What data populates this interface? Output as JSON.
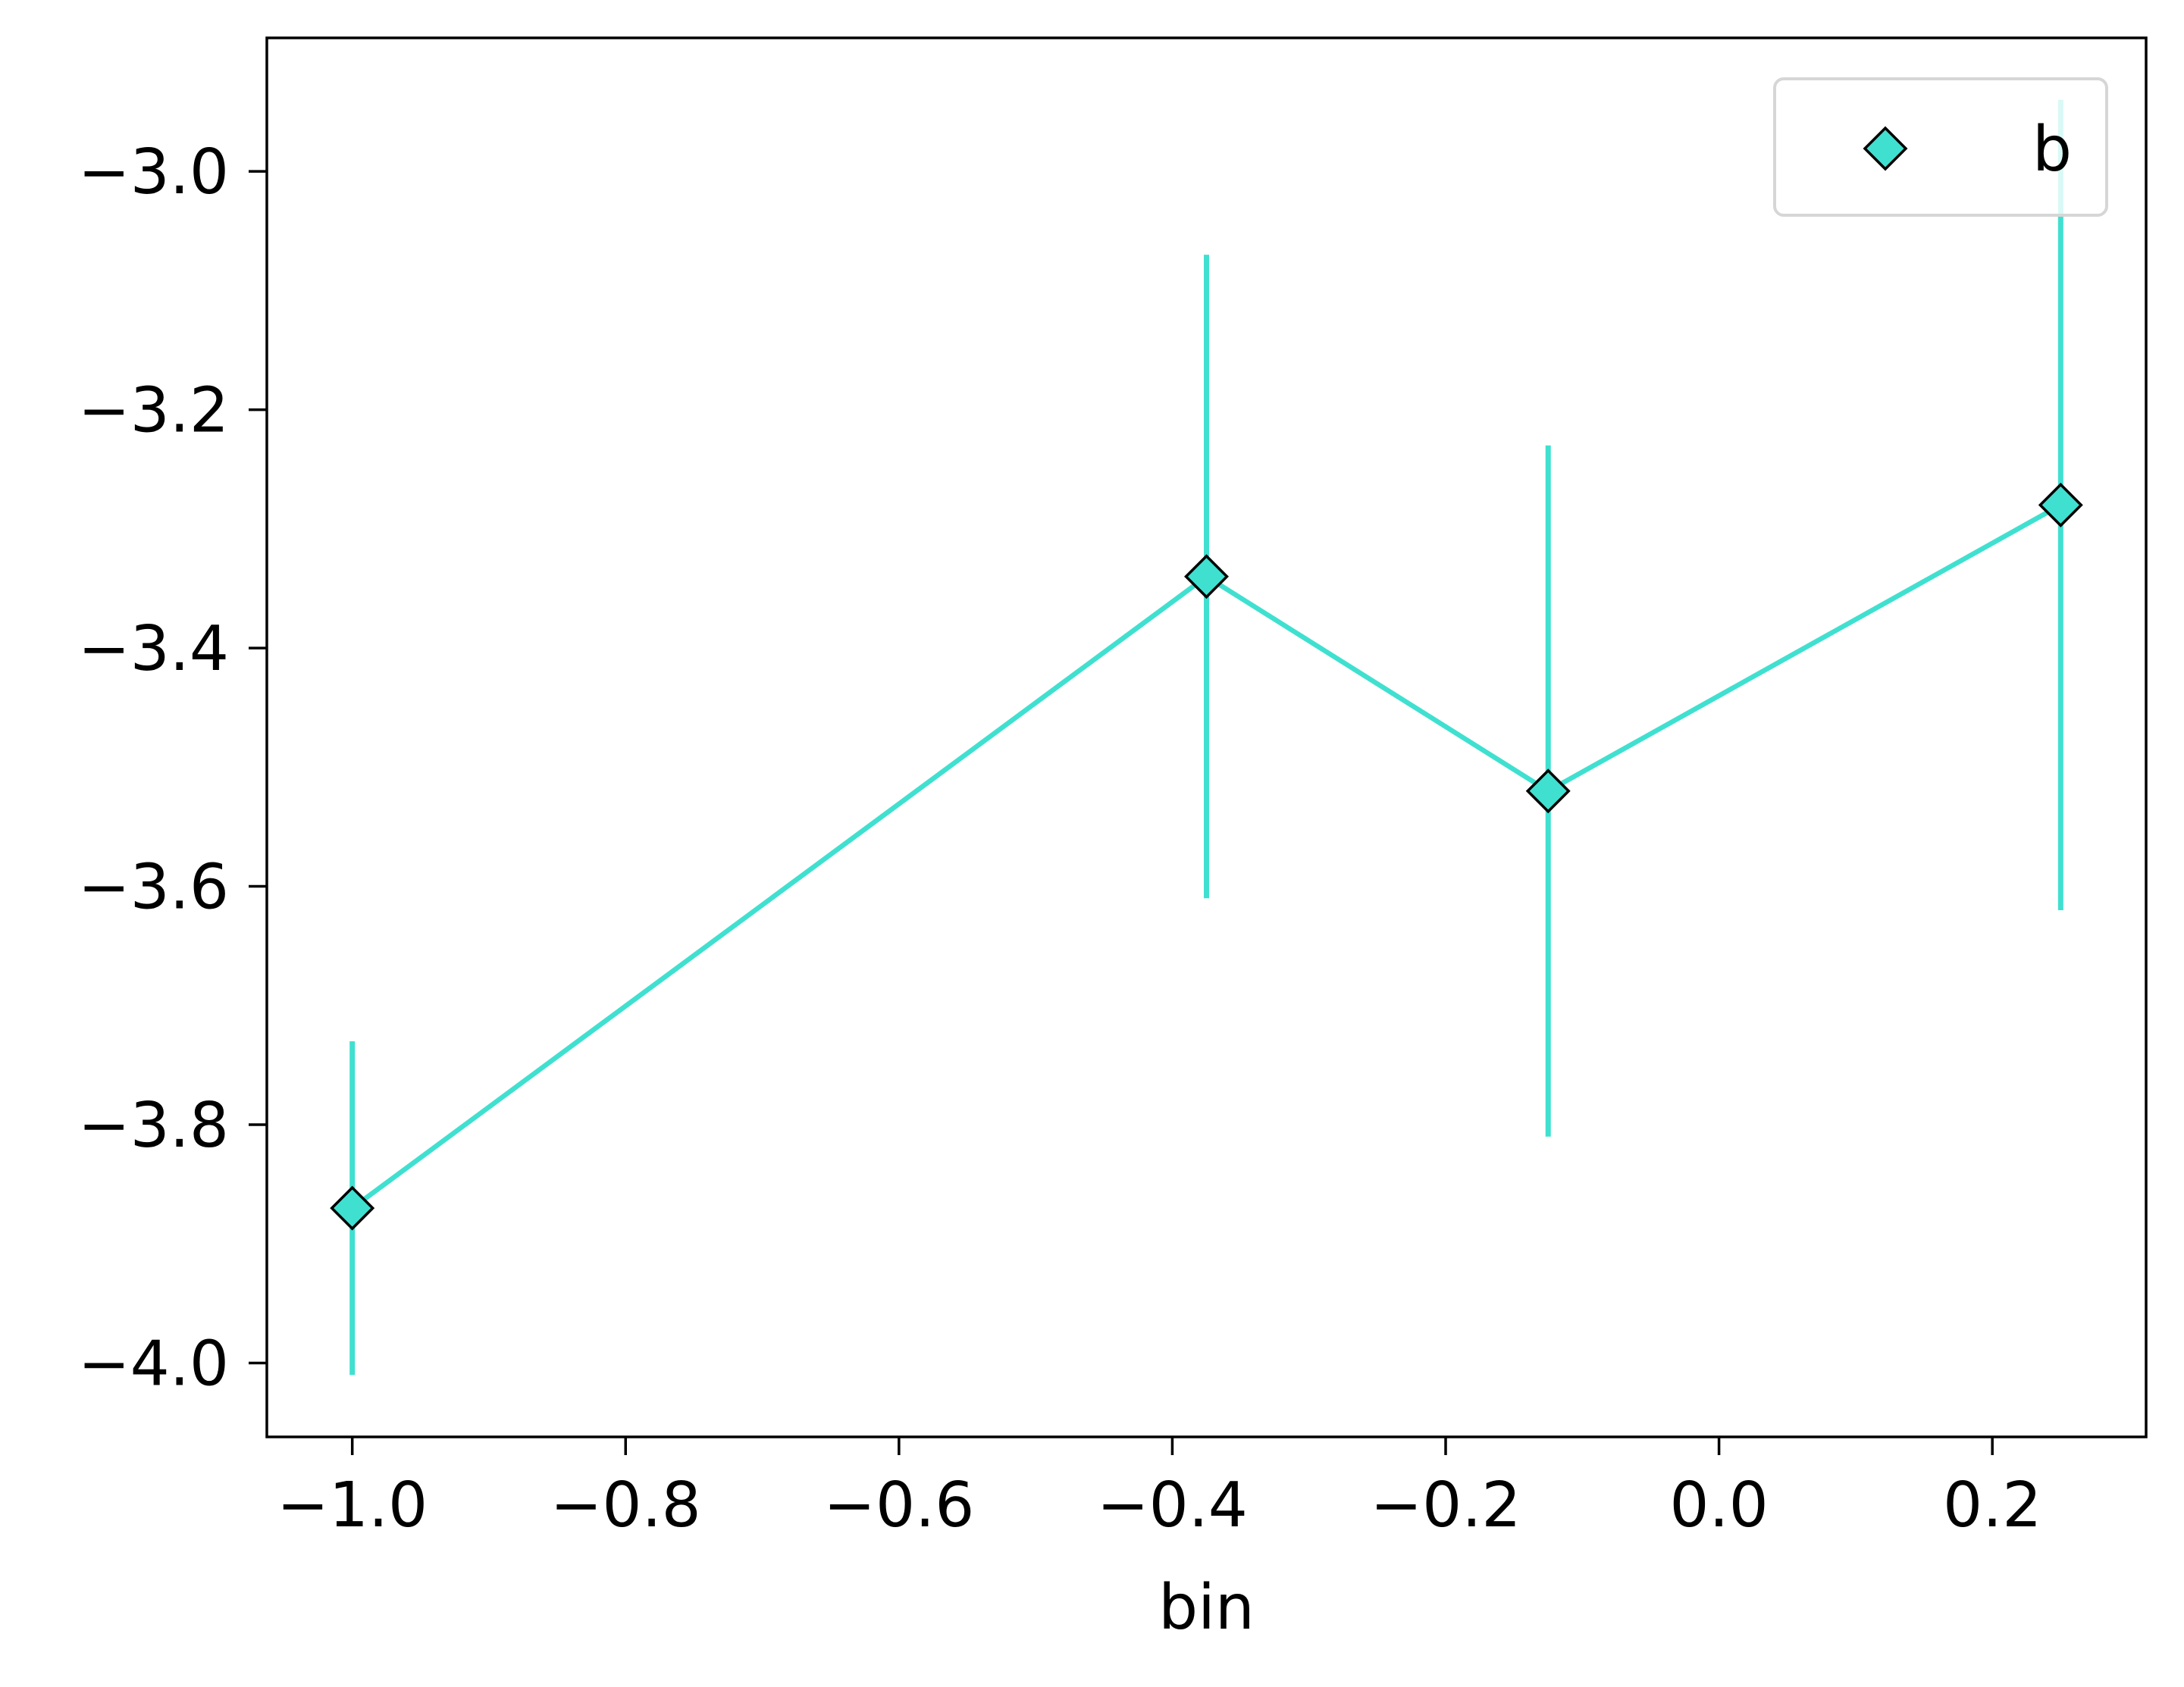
{
  "chart_data": {
    "type": "line",
    "title": "",
    "xlabel": "bin",
    "ylabel": "",
    "xlim": [
      -1.0625,
      0.3125
    ],
    "ylim": [
      -4.062,
      -2.888
    ],
    "x_ticks": [
      -1.0,
      -0.8,
      -0.6,
      -0.4,
      -0.2,
      0.0,
      0.2
    ],
    "x_tick_labels": [
      "−1.0",
      "−0.8",
      "−0.6",
      "−0.4",
      "−0.2",
      "0.0",
      "0.2"
    ],
    "y_ticks": [
      -3.0,
      -3.2,
      -3.4,
      -3.6,
      -3.8,
      -4.0
    ],
    "y_tick_labels": [
      "−3.0",
      "−3.2",
      "−3.4",
      "−3.6",
      "−3.8",
      "−4.0"
    ],
    "grid": false,
    "legend": {
      "position": "top-right",
      "entries": [
        "b"
      ]
    },
    "series": [
      {
        "name": "b",
        "color": "#40e0d0",
        "marker": "diamond",
        "x": [
          -1.0,
          -0.375,
          -0.125,
          0.25
        ],
        "y": [
          -3.87,
          -3.34,
          -3.52,
          -3.28
        ],
        "err_low": [
          0.14,
          0.27,
          0.29,
          0.34
        ],
        "err_high": [
          0.14,
          0.27,
          0.29,
          0.34
        ]
      }
    ]
  }
}
